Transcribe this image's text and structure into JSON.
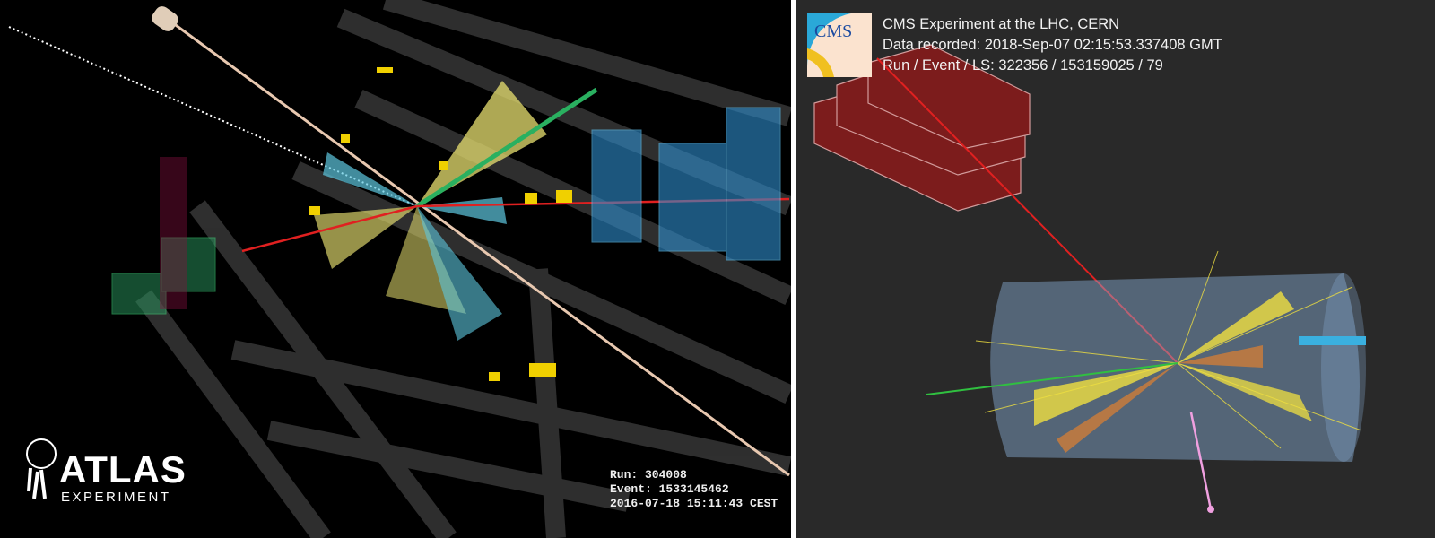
{
  "atlas_panel": {
    "logo": {
      "name": "ATLAS",
      "subtitle": "EXPERIMENT"
    },
    "run_label": "Run: 304008",
    "event_label": "Event: 1533145462",
    "timestamp": "2016-07-18 15:11:43 CEST"
  },
  "cms_panel": {
    "logo_text": "CMS",
    "title": "CMS Experiment at the LHC, CERN",
    "data_recorded": "Data recorded: 2018-Sep-07 02:15:53.337408 GMT",
    "run_event_ls": "Run / Event / LS: 322356 / 153159025 / 79"
  },
  "colors": {
    "atlas_background": "#000000",
    "cms_background": "#292929",
    "jet_cone_yellow": "#e8e070",
    "jet_cone_cyan": "#5ec8e0",
    "muon_track_red": "#e02020",
    "calorimeter_blue": "#2f8fd0",
    "cms_muon_chamber": "#8b1a1a",
    "cms_tracker": "#8ab0d8"
  }
}
